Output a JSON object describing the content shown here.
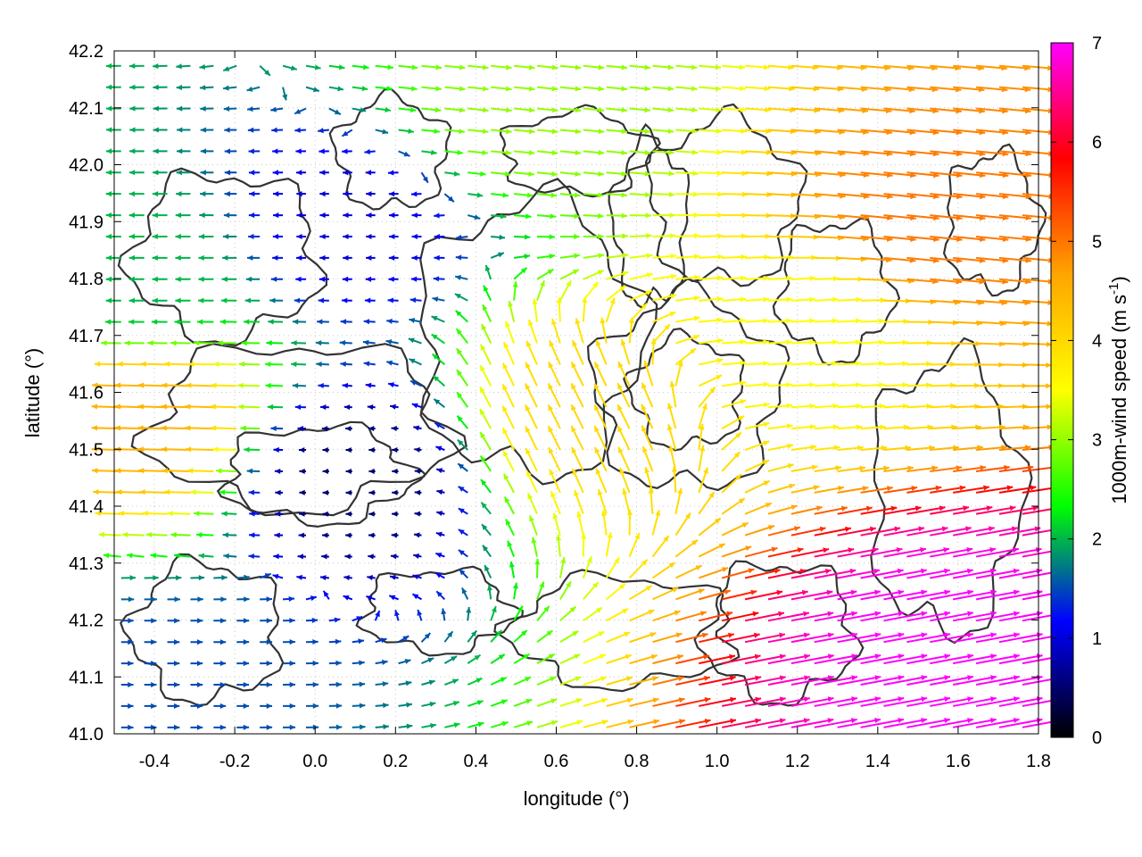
{
  "chart_data": {
    "type": "vector-field",
    "xlabel": "longitude (°)",
    "ylabel": "latitude (°)",
    "xlim": [
      -0.5,
      1.8
    ],
    "ylim": [
      41.0,
      42.2
    ],
    "x_ticks": [
      "-0.4",
      "-0.2",
      "0.0",
      "0.2",
      "0.4",
      "0.6",
      "0.8",
      "1.0",
      "1.2",
      "1.4",
      "1.6",
      "1.8"
    ],
    "x_tick_values": [
      -0.4,
      -0.2,
      0.0,
      0.2,
      0.4,
      0.6,
      0.8,
      1.0,
      1.2,
      1.4,
      1.6,
      1.8
    ],
    "y_ticks": [
      "41.0",
      "41.1",
      "41.2",
      "41.3",
      "41.4",
      "41.5",
      "41.6",
      "41.7",
      "41.8",
      "41.9",
      "42.0",
      "42.1",
      "42.2"
    ],
    "y_tick_values": [
      41.0,
      41.1,
      41.2,
      41.3,
      41.4,
      41.5,
      41.6,
      41.7,
      41.8,
      41.9,
      42.0,
      42.1,
      42.2
    ],
    "grid": true,
    "colorbar": {
      "label_prefix": "1000m-wind speed (m s",
      "label_exp": "-1",
      "label_suffix": ")",
      "range": [
        0,
        7
      ],
      "ticks": [
        "0",
        "1",
        "2",
        "3",
        "4",
        "5",
        "6",
        "7"
      ],
      "tick_values": [
        0,
        1,
        2,
        3,
        4,
        5,
        6,
        7
      ],
      "colors": [
        "#000000",
        "#0000ff",
        "#00ff00",
        "#ffff00",
        "#ffa500",
        "#ff0000",
        "#ff00ff"
      ]
    },
    "wind_regions": [
      {
        "lon": -0.4,
        "lat": 41.8,
        "u": -1.5,
        "v": 0.0,
        "speed": 2.0
      },
      {
        "lon": -0.4,
        "lat": 41.55,
        "u": -3.5,
        "v": 0.1,
        "speed": 4.5
      },
      {
        "lon": -0.4,
        "lat": 41.1,
        "u": 1.5,
        "v": 0.0,
        "speed": 1.5
      },
      {
        "lon": 0.1,
        "lat": 41.45,
        "u": -0.3,
        "v": 0.0,
        "speed": 0.5
      },
      {
        "lon": 0.1,
        "lat": 41.9,
        "u": -0.8,
        "v": 0.0,
        "speed": 1.0
      },
      {
        "lon": 0.7,
        "lat": 41.55,
        "u": -0.5,
        "v": 1.0,
        "speed": 4.0
      },
      {
        "lon": 1.5,
        "lat": 41.15,
        "u": 6.5,
        "v": 1.2,
        "speed": 7.0
      },
      {
        "lon": 1.5,
        "lat": 41.9,
        "u": 5.0,
        "v": -0.5,
        "speed": 5.0
      },
      {
        "lon": 1.2,
        "lat": 41.7,
        "u": 3.5,
        "v": 0.2,
        "speed": 3.5
      },
      {
        "lon": 0.5,
        "lat": 42.1,
        "u": 3.0,
        "v": -0.3,
        "speed": 3.0
      }
    ]
  }
}
